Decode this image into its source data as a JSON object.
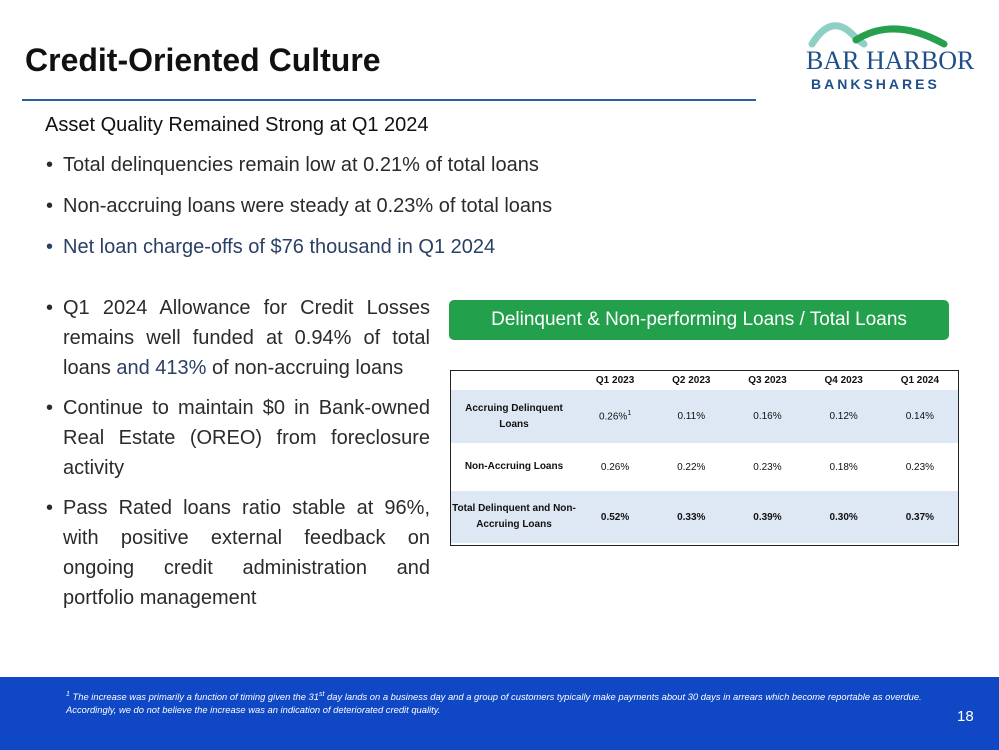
{
  "header": {
    "title": "Credit-Oriented Culture",
    "logo_line1": "BAR HARBOR",
    "logo_line2": "BANKSHARES"
  },
  "subheading": "Asset Quality Remained Strong at Q1 2024",
  "top_bullets": [
    "Total delinquencies remain low at 0.21% of total loans",
    "Non-accruing loans were steady at 0.23% of total loans",
    "Net loan charge-offs of $76 thousand in Q1 2024"
  ],
  "left_bullets": {
    "b1_part1": "Q1 2024 Allowance for Credit Losses remains well funded at 0.94% of total loans",
    "b1_part2": " and 413%",
    "b1_part3": " of non-accruing loans",
    "b2": "Continue to maintain $0 in Bank-owned Real Estate (OREO) from foreclosure activity",
    "b3": "Pass Rated loans ratio stable at 96%, with positive external feedback on ongoing credit administration and portfolio management"
  },
  "table": {
    "title": "Delinquent & Non-performing Loans / Total Loans",
    "columns": [
      "Q1 2023",
      "Q2 2023",
      "Q3 2023",
      "Q4 2023",
      "Q1 2024"
    ],
    "rows": [
      {
        "label": "Accruing Delinquent Loans",
        "values": [
          "0.26%",
          "0.11%",
          "0.16%",
          "0.12%",
          "0.14%"
        ],
        "note": "1"
      },
      {
        "label": "Non-Accruing Loans",
        "values": [
          "0.26%",
          "0.22%",
          "0.23%",
          "0.18%",
          "0.23%"
        ]
      },
      {
        "label": "Total Delinquent and Non-Accruing Loans",
        "values": [
          "0.52%",
          "0.33%",
          "0.39%",
          "0.30%",
          "0.37%"
        ]
      }
    ]
  },
  "footer": {
    "footnote_marker": "1",
    "footnote_text": " The increase was primarily a function of timing given the 31",
    "footnote_sup": "st",
    "footnote_text2": " day lands on a business day and a group of customers typically make payments about 30 days in arrears which become reportable as overdue.   Accordingly, we do not believe the increase was an indication of deteriorated credit quality.",
    "page_number": "18"
  },
  "colors": {
    "accent_blue": "#2f5e9e",
    "green": "#22a04b",
    "footer_blue": "#0f47c4",
    "row_shade": "#dde8f4"
  }
}
